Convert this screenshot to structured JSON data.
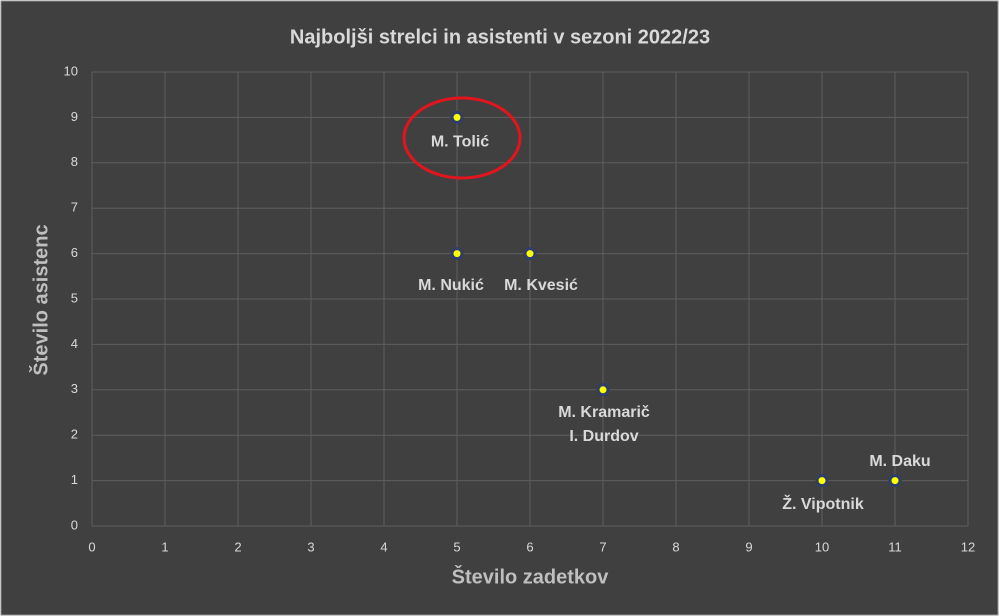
{
  "chart_data": {
    "type": "scatter",
    "title": "Najboljši strelci in asistenti v sezoni 2022/23",
    "xlabel": "Število zadetkov",
    "ylabel": "Število asistenc",
    "x": [
      5,
      5,
      6,
      7,
      7,
      10,
      11
    ],
    "values": [
      9,
      6,
      6,
      3,
      3,
      1,
      1
    ],
    "point_labels": [
      "M. Tolić",
      "M. Nukić",
      "M. Kvesić",
      "M. Kramarič",
      "I. Durdov",
      "Ž. Vipotnik",
      "M. Daku"
    ],
    "color": "#ffff00",
    "xlim": [
      0,
      12
    ],
    "xticks": [
      0,
      1,
      2,
      3,
      4,
      5,
      6,
      7,
      8,
      9,
      10,
      11,
      12
    ],
    "ylim": [
      0,
      10
    ],
    "yticks": [
      0,
      1,
      2,
      3,
      4,
      5,
      6,
      7,
      8,
      9,
      10
    ],
    "grid": true
  }
}
